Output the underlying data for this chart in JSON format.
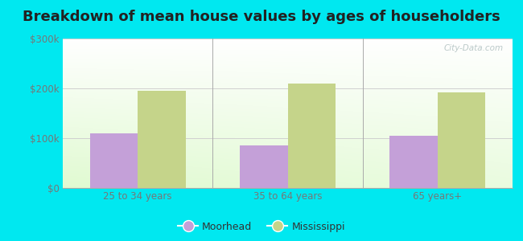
{
  "title": "Breakdown of mean house values by ages of householders",
  "categories": [
    "25 to 34 years",
    "35 to 64 years",
    "65 years+"
  ],
  "moorhead_values": [
    110000,
    85000,
    105000
  ],
  "mississippi_values": [
    195000,
    210000,
    192000
  ],
  "ylim": [
    0,
    300000
  ],
  "yticks": [
    0,
    100000,
    200000,
    300000
  ],
  "ytick_labels": [
    "$0",
    "$100k",
    "$200k",
    "$300k"
  ],
  "bar_width": 0.32,
  "moorhead_color": "#c4a0d8",
  "mississippi_color": "#c5d48a",
  "background_outer": "#00e8f0",
  "title_fontsize": 13,
  "legend_labels": [
    "Moorhead",
    "Mississippi"
  ],
  "watermark": "City-Data.com",
  "grid_color": "#d0d0d0",
  "tick_color": "#777777",
  "title_color": "#222222"
}
